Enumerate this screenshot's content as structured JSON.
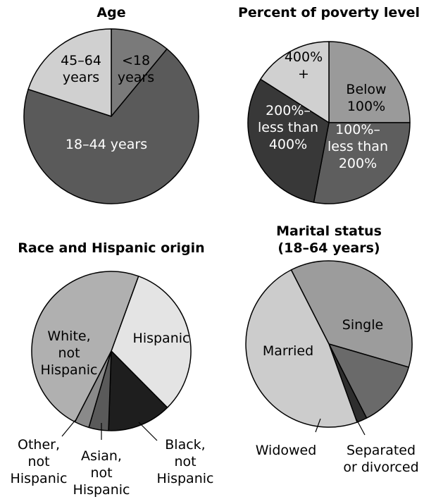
{
  "chart_data": [
    {
      "type": "pie",
      "title": "Age",
      "slices": [
        {
          "label": "<18 years",
          "value": 11,
          "color": "#7a7a7a"
        },
        {
          "label": "18–44 years",
          "value": 69,
          "color": "#5a5a5a"
        },
        {
          "label": "45–64 years",
          "value": 20,
          "color": "#d0d0d0"
        }
      ]
    },
    {
      "type": "pie",
      "title": "Percent of poverty level",
      "slices": [
        {
          "label": "Below 100%",
          "value": 25,
          "color": "#9a9a9a"
        },
        {
          "label": "100%– less than 200%",
          "value": 28,
          "color": "#5e5e5e"
        },
        {
          "label": "200%– less than 400%",
          "value": 31,
          "color": "#383838"
        },
        {
          "label": "400% +",
          "value": 16,
          "color": "#d0d0d0"
        }
      ]
    },
    {
      "type": "pie",
      "title": "Race and Hispanic origin",
      "slices": [
        {
          "label": "Hispanic",
          "value": 32,
          "color": "#e4e4e4"
        },
        {
          "label": "Black, not Hispanic",
          "value": 13,
          "color": "#1e1e1e"
        },
        {
          "label": "Asian, not Hispanic",
          "value": 4,
          "color": "#5a5a5a"
        },
        {
          "label": "Other, not Hispanic",
          "value": 3,
          "color": "#8a8a8a"
        },
        {
          "label": "White, not Hispanic",
          "value": 48,
          "color": "#b0b0b0"
        }
      ]
    },
    {
      "type": "pie",
      "title": "Marital status (18–64 years)",
      "slices": [
        {
          "label": "Single",
          "value": 37,
          "color": "#9c9c9c"
        },
        {
          "label": "Separated or divorced",
          "value": 13,
          "color": "#6a6a6a"
        },
        {
          "label": "Widowed",
          "value": 2,
          "color": "#2e2e2e"
        },
        {
          "label": "Married",
          "value": 48,
          "color": "#cccccc"
        }
      ]
    }
  ]
}
